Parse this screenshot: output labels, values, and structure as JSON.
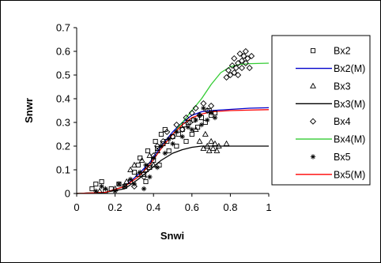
{
  "chart_data": {
    "type": "scatter",
    "xlabel": "Snwi",
    "ylabel": "Snwr",
    "xlim": [
      0,
      1
    ],
    "ylim": [
      0,
      0.7
    ],
    "xticks": [
      "0",
      "0.2",
      "0.4",
      "0.6",
      "0.8",
      "1"
    ],
    "yticks": [
      "0",
      "0.1",
      "0.2",
      "0.3",
      "0.4",
      "0.5",
      "0.6",
      "0.7"
    ],
    "grid": false,
    "legend_position": "right",
    "series": [
      {
        "name": "Bx2",
        "kind": "points",
        "marker": "square",
        "color": "#000000",
        "points": [
          [
            0.08,
            0.02
          ],
          [
            0.1,
            0.04
          ],
          [
            0.13,
            0.05
          ],
          [
            0.15,
            0.01
          ],
          [
            0.18,
            0.02
          ],
          [
            0.22,
            0.04
          ],
          [
            0.25,
            0.03
          ],
          [
            0.28,
            0.05
          ],
          [
            0.3,
            0.09
          ],
          [
            0.32,
            0.12
          ],
          [
            0.33,
            0.15
          ],
          [
            0.35,
            0.08
          ],
          [
            0.36,
            0.05
          ],
          [
            0.37,
            0.18
          ],
          [
            0.38,
            0.11
          ],
          [
            0.4,
            0.14
          ],
          [
            0.41,
            0.22
          ],
          [
            0.42,
            0.19
          ],
          [
            0.43,
            0.12
          ],
          [
            0.44,
            0.25
          ],
          [
            0.45,
            0.21
          ],
          [
            0.46,
            0.27
          ],
          [
            0.47,
            0.22
          ],
          [
            0.48,
            0.18
          ],
          [
            0.5,
            0.24
          ],
          [
            0.52,
            0.2
          ],
          [
            0.53,
            0.25
          ],
          [
            0.55,
            0.27
          ],
          [
            0.56,
            0.29
          ],
          [
            0.57,
            0.22
          ],
          [
            0.58,
            0.3
          ],
          [
            0.6,
            0.25
          ],
          [
            0.61,
            0.31
          ],
          [
            0.63,
            0.28
          ],
          [
            0.65,
            0.32
          ],
          [
            0.67,
            0.3
          ],
          [
            0.69,
            0.35
          ],
          [
            0.7,
            0.33
          ],
          [
            0.72,
            0.34
          ]
        ]
      },
      {
        "name": "Bx2(M)",
        "kind": "line",
        "color": "#0000cc",
        "points": [
          [
            0,
            0
          ],
          [
            0.15,
            0.005
          ],
          [
            0.25,
            0.03
          ],
          [
            0.32,
            0.08
          ],
          [
            0.38,
            0.13
          ],
          [
            0.44,
            0.2
          ],
          [
            0.5,
            0.26
          ],
          [
            0.55,
            0.3
          ],
          [
            0.6,
            0.33
          ],
          [
            0.65,
            0.345
          ],
          [
            0.7,
            0.35
          ],
          [
            0.8,
            0.355
          ],
          [
            0.9,
            0.36
          ],
          [
            1,
            0.362
          ]
        ]
      },
      {
        "name": "Bx3",
        "kind": "points",
        "marker": "triangle",
        "color": "#000000",
        "points": [
          [
            0.12,
            0.01
          ],
          [
            0.2,
            0.02
          ],
          [
            0.26,
            0.05
          ],
          [
            0.28,
            0.1
          ],
          [
            0.3,
            0.12
          ],
          [
            0.32,
            0.08
          ],
          [
            0.34,
            0.14
          ],
          [
            0.36,
            0.1
          ],
          [
            0.38,
            0.16
          ],
          [
            0.4,
            0.12
          ],
          [
            0.42,
            0.18
          ],
          [
            0.62,
            0.27
          ],
          [
            0.64,
            0.22
          ],
          [
            0.66,
            0.19
          ],
          [
            0.67,
            0.25
          ],
          [
            0.68,
            0.2
          ],
          [
            0.69,
            0.18
          ],
          [
            0.7,
            0.22
          ],
          [
            0.71,
            0.19
          ],
          [
            0.72,
            0.21
          ],
          [
            0.73,
            0.18
          ],
          [
            0.74,
            0.2
          ],
          [
            0.78,
            0.21
          ]
        ]
      },
      {
        "name": "Bx3(M)",
        "kind": "line",
        "color": "#000000",
        "points": [
          [
            0,
            0
          ],
          [
            0.15,
            0.005
          ],
          [
            0.25,
            0.02
          ],
          [
            0.32,
            0.06
          ],
          [
            0.38,
            0.1
          ],
          [
            0.44,
            0.14
          ],
          [
            0.5,
            0.17
          ],
          [
            0.55,
            0.185
          ],
          [
            0.6,
            0.195
          ],
          [
            0.65,
            0.2
          ],
          [
            0.7,
            0.2
          ],
          [
            1,
            0.2
          ]
        ]
      },
      {
        "name": "Bx4",
        "kind": "points",
        "marker": "diamond",
        "color": "#000000",
        "points": [
          [
            0.3,
            0.03
          ],
          [
            0.35,
            0.07
          ],
          [
            0.38,
            0.12
          ],
          [
            0.4,
            0.16
          ],
          [
            0.42,
            0.2
          ],
          [
            0.45,
            0.22
          ],
          [
            0.47,
            0.26
          ],
          [
            0.5,
            0.24
          ],
          [
            0.52,
            0.29
          ],
          [
            0.55,
            0.27
          ],
          [
            0.57,
            0.32
          ],
          [
            0.59,
            0.3
          ],
          [
            0.6,
            0.34
          ],
          [
            0.62,
            0.36
          ],
          [
            0.64,
            0.33
          ],
          [
            0.66,
            0.38
          ],
          [
            0.68,
            0.35
          ],
          [
            0.7,
            0.37
          ],
          [
            0.78,
            0.49
          ],
          [
            0.79,
            0.52
          ],
          [
            0.8,
            0.5
          ],
          [
            0.81,
            0.54
          ],
          [
            0.82,
            0.51
          ],
          [
            0.82,
            0.57
          ],
          [
            0.83,
            0.53
          ],
          [
            0.84,
            0.55
          ],
          [
            0.84,
            0.5
          ],
          [
            0.85,
            0.59
          ],
          [
            0.86,
            0.56
          ],
          [
            0.86,
            0.53
          ],
          [
            0.87,
            0.58
          ],
          [
            0.88,
            0.55
          ],
          [
            0.88,
            0.6
          ],
          [
            0.89,
            0.57
          ],
          [
            0.9,
            0.53
          ],
          [
            0.91,
            0.58
          ]
        ]
      },
      {
        "name": "Bx4(M)",
        "kind": "line",
        "color": "#33cc33",
        "points": [
          [
            0,
            0
          ],
          [
            0.15,
            0.005
          ],
          [
            0.25,
            0.03
          ],
          [
            0.32,
            0.07
          ],
          [
            0.38,
            0.12
          ],
          [
            0.44,
            0.19
          ],
          [
            0.5,
            0.25
          ],
          [
            0.55,
            0.3
          ],
          [
            0.6,
            0.35
          ],
          [
            0.65,
            0.4
          ],
          [
            0.7,
            0.46
          ],
          [
            0.75,
            0.51
          ],
          [
            0.8,
            0.535
          ],
          [
            0.85,
            0.545
          ],
          [
            0.9,
            0.548
          ],
          [
            1,
            0.55
          ]
        ]
      },
      {
        "name": "Bx5",
        "kind": "points",
        "marker": "asterisk",
        "color": "#000000",
        "points": [
          [
            0.1,
            0.01
          ],
          [
            0.13,
            0.03
          ],
          [
            0.15,
            0.02
          ],
          [
            0.2,
            0.01
          ],
          [
            0.22,
            0.04
          ],
          [
            0.25,
            0.03
          ],
          [
            0.28,
            0.06
          ],
          [
            0.3,
            0.04
          ],
          [
            0.33,
            0.09
          ],
          [
            0.35,
            0.02
          ],
          [
            0.36,
            0.12
          ],
          [
            0.38,
            0.07
          ],
          [
            0.4,
            0.15
          ],
          [
            0.42,
            0.11
          ],
          [
            0.44,
            0.2
          ],
          [
            0.46,
            0.17
          ],
          [
            0.48,
            0.23
          ],
          [
            0.5,
            0.21
          ],
          [
            0.52,
            0.26
          ],
          [
            0.55,
            0.24
          ],
          [
            0.58,
            0.28
          ],
          [
            0.6,
            0.27
          ],
          [
            0.62,
            0.31
          ],
          [
            0.64,
            0.33
          ],
          [
            0.65,
            0.29
          ],
          [
            0.66,
            0.36
          ],
          [
            0.68,
            0.31
          ],
          [
            0.7,
            0.34
          ],
          [
            0.72,
            0.32
          ]
        ]
      },
      {
        "name": "Bx5(M)",
        "kind": "line",
        "color": "#ff0000",
        "points": [
          [
            0,
            0
          ],
          [
            0.15,
            0.005
          ],
          [
            0.25,
            0.03
          ],
          [
            0.32,
            0.07
          ],
          [
            0.38,
            0.12
          ],
          [
            0.44,
            0.19
          ],
          [
            0.5,
            0.25
          ],
          [
            0.55,
            0.29
          ],
          [
            0.6,
            0.32
          ],
          [
            0.65,
            0.335
          ],
          [
            0.7,
            0.345
          ],
          [
            0.8,
            0.35
          ],
          [
            0.9,
            0.352
          ],
          [
            1,
            0.354
          ]
        ]
      }
    ]
  }
}
